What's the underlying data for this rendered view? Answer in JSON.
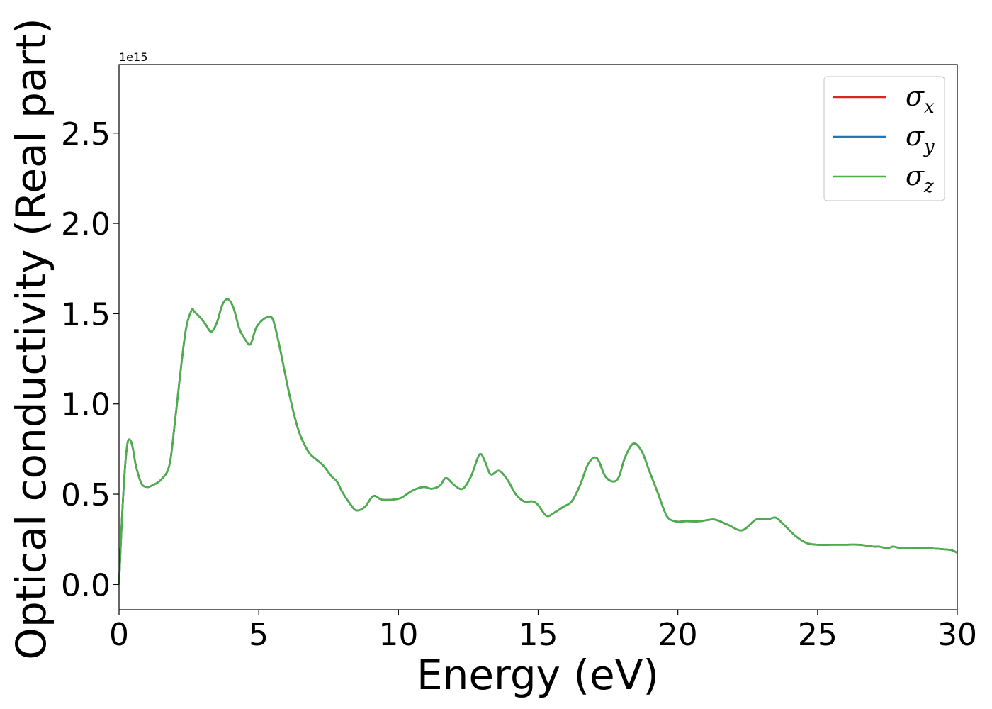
{
  "chart_data": {
    "type": "line",
    "xlabel": "Energy (eV)",
    "ylabel": "Optical conductivity (Real part)",
    "y_offset_text": "1e15",
    "xlim": [
      0,
      30
    ],
    "ylim": [
      -0.14,
      2.88
    ],
    "x_ticks": [
      0,
      5,
      10,
      15,
      20,
      25,
      30
    ],
    "x_tick_labels": [
      "0",
      "5",
      "10",
      "15",
      "20",
      "25",
      "30"
    ],
    "y_ticks": [
      0.0,
      0.5,
      1.0,
      1.5,
      2.0,
      2.5
    ],
    "y_tick_labels": [
      "0.0",
      "0.5",
      "1.0",
      "1.5",
      "2.0",
      "2.5"
    ],
    "grid": false,
    "legend_position": "top-right",
    "x": [
      0.0,
      0.1,
      0.2,
      0.3,
      0.4,
      0.5,
      0.6,
      0.8,
      1.0,
      1.2,
      1.5,
      1.8,
      2.0,
      2.2,
      2.4,
      2.6,
      2.7,
      2.9,
      3.1,
      3.3,
      3.5,
      3.7,
      3.9,
      4.1,
      4.3,
      4.5,
      4.7,
      4.9,
      5.1,
      5.3,
      5.5,
      5.7,
      5.9,
      6.1,
      6.3,
      6.5,
      6.8,
      7.0,
      7.3,
      7.6,
      7.8,
      8.0,
      8.3,
      8.5,
      8.8,
      9.1,
      9.4,
      9.8,
      10.1,
      10.5,
      10.9,
      11.2,
      11.5,
      11.7,
      12.0,
      12.3,
      12.6,
      12.9,
      13.1,
      13.3,
      13.6,
      13.9,
      14.2,
      14.5,
      14.8,
      15.0,
      15.3,
      15.6,
      15.9,
      16.2,
      16.5,
      16.8,
      17.1,
      17.4,
      17.7,
      17.9,
      18.1,
      18.4,
      18.7,
      19.0,
      19.3,
      19.6,
      19.9,
      20.3,
      20.8,
      21.3,
      21.8,
      22.3,
      22.8,
      23.2,
      23.5,
      23.8,
      24.2,
      24.6,
      25.0,
      25.5,
      26.0,
      26.5,
      27.0,
      27.2,
      27.5,
      27.7,
      28.0,
      28.5,
      29.0,
      29.5,
      29.8,
      30.0
    ],
    "series": [
      {
        "name": "σx",
        "color": "#d62728",
        "values": [
          0.0,
          0.35,
          0.62,
          0.78,
          0.8,
          0.75,
          0.66,
          0.56,
          0.54,
          0.55,
          0.58,
          0.66,
          0.9,
          1.18,
          1.42,
          1.52,
          1.51,
          1.48,
          1.44,
          1.4,
          1.45,
          1.55,
          1.58,
          1.53,
          1.42,
          1.36,
          1.33,
          1.42,
          1.46,
          1.48,
          1.47,
          1.35,
          1.2,
          1.05,
          0.92,
          0.82,
          0.73,
          0.7,
          0.66,
          0.6,
          0.57,
          0.51,
          0.44,
          0.41,
          0.43,
          0.49,
          0.47,
          0.47,
          0.48,
          0.52,
          0.54,
          0.53,
          0.55,
          0.59,
          0.55,
          0.53,
          0.6,
          0.72,
          0.68,
          0.61,
          0.63,
          0.58,
          0.5,
          0.46,
          0.46,
          0.44,
          0.38,
          0.4,
          0.43,
          0.46,
          0.55,
          0.67,
          0.7,
          0.6,
          0.57,
          0.6,
          0.7,
          0.78,
          0.74,
          0.62,
          0.5,
          0.38,
          0.35,
          0.35,
          0.35,
          0.36,
          0.33,
          0.3,
          0.36,
          0.36,
          0.37,
          0.33,
          0.27,
          0.23,
          0.22,
          0.22,
          0.22,
          0.22,
          0.21,
          0.21,
          0.2,
          0.21,
          0.2,
          0.2,
          0.2,
          0.195,
          0.19,
          0.175
        ]
      },
      {
        "name": "σy",
        "color": "#1f77b4",
        "values": [
          0.0,
          0.35,
          0.62,
          0.78,
          0.8,
          0.75,
          0.66,
          0.56,
          0.54,
          0.55,
          0.58,
          0.66,
          0.9,
          1.18,
          1.42,
          1.52,
          1.51,
          1.48,
          1.44,
          1.4,
          1.45,
          1.55,
          1.58,
          1.53,
          1.42,
          1.36,
          1.33,
          1.42,
          1.46,
          1.48,
          1.47,
          1.35,
          1.2,
          1.05,
          0.92,
          0.82,
          0.73,
          0.7,
          0.66,
          0.6,
          0.57,
          0.51,
          0.44,
          0.41,
          0.43,
          0.49,
          0.47,
          0.47,
          0.48,
          0.52,
          0.54,
          0.53,
          0.55,
          0.59,
          0.55,
          0.53,
          0.6,
          0.72,
          0.68,
          0.61,
          0.63,
          0.58,
          0.5,
          0.46,
          0.46,
          0.44,
          0.38,
          0.4,
          0.43,
          0.46,
          0.55,
          0.67,
          0.7,
          0.6,
          0.57,
          0.6,
          0.7,
          0.78,
          0.74,
          0.62,
          0.5,
          0.38,
          0.35,
          0.35,
          0.35,
          0.36,
          0.33,
          0.3,
          0.36,
          0.36,
          0.37,
          0.33,
          0.27,
          0.23,
          0.22,
          0.22,
          0.22,
          0.22,
          0.21,
          0.21,
          0.2,
          0.21,
          0.2,
          0.2,
          0.2,
          0.195,
          0.19,
          0.175
        ]
      },
      {
        "name": "σz",
        "color": "#4daf4a",
        "values": [
          0.0,
          0.35,
          0.62,
          0.78,
          0.8,
          0.75,
          0.66,
          0.56,
          0.54,
          0.55,
          0.58,
          0.66,
          0.9,
          1.18,
          1.42,
          1.52,
          1.51,
          1.48,
          1.44,
          1.4,
          1.45,
          1.55,
          1.58,
          1.53,
          1.42,
          1.36,
          1.33,
          1.42,
          1.46,
          1.48,
          1.47,
          1.35,
          1.2,
          1.05,
          0.92,
          0.82,
          0.73,
          0.7,
          0.66,
          0.6,
          0.57,
          0.51,
          0.44,
          0.41,
          0.43,
          0.49,
          0.47,
          0.47,
          0.48,
          0.52,
          0.54,
          0.53,
          0.55,
          0.59,
          0.55,
          0.53,
          0.6,
          0.72,
          0.68,
          0.61,
          0.63,
          0.58,
          0.5,
          0.46,
          0.46,
          0.44,
          0.38,
          0.4,
          0.43,
          0.46,
          0.55,
          0.67,
          0.7,
          0.6,
          0.57,
          0.6,
          0.7,
          0.78,
          0.74,
          0.62,
          0.5,
          0.38,
          0.35,
          0.35,
          0.35,
          0.36,
          0.33,
          0.3,
          0.36,
          0.36,
          0.37,
          0.33,
          0.27,
          0.23,
          0.22,
          0.22,
          0.22,
          0.22,
          0.21,
          0.21,
          0.2,
          0.21,
          0.2,
          0.2,
          0.2,
          0.195,
          0.19,
          0.175
        ]
      }
    ]
  }
}
